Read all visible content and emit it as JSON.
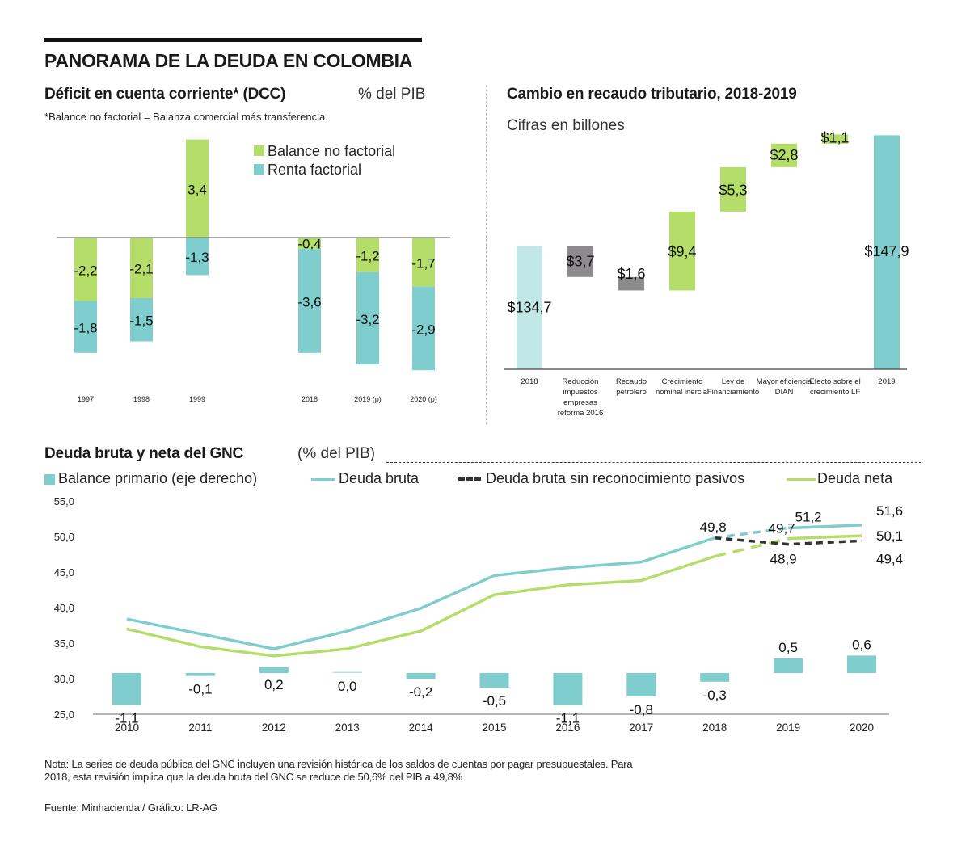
{
  "page": {
    "title": "PANORAMA DE LA DEUDA EN COLOMBIA",
    "note": "Nota: La series de deuda pública del GNC incluyen una revisión histórica de los saldos de cuentas por pagar presupuestales. Para 2018, esta revisión implica que la deuda bruta del GNC se reduce de 50,6% del PIB a 49,8%",
    "source": "Fuente: Minhacienda / Gráfico: LR-AG"
  },
  "colors": {
    "green": "#b5dd6a",
    "teal": "#7fcecd",
    "teal_light": "#c1e6e6",
    "gray": "#8e8b8e",
    "dark": "#333333"
  },
  "chart_data": [
    {
      "id": "dcc",
      "type": "bar",
      "stacked": true,
      "title": "Déficit en cuenta corriente* (DCC)",
      "unit": "% del PIB",
      "subtitle": "*Balance no factorial = Balanza comercial más transferencia",
      "categories": [
        "1997",
        "1998",
        "1999",
        "2018",
        "2019 (p)",
        "2020 (p)"
      ],
      "series": [
        {
          "name": "Balance no factorial",
          "color": "#b5dd6a",
          "values": [
            -2.2,
            -2.1,
            3.4,
            -0.4,
            -1.2,
            -1.7
          ],
          "labels": [
            "-2,2",
            "-2,1",
            "3,4",
            "-0,4",
            "-1,2",
            "-1,7"
          ]
        },
        {
          "name": "Renta factorial",
          "color": "#7fcecd",
          "values": [
            -1.8,
            -1.5,
            -1.3,
            -3.6,
            -3.2,
            -2.9
          ],
          "labels": [
            "-1,8",
            "-1,5",
            "-1,3",
            "-3,6",
            "-3,2",
            "-2,9"
          ]
        }
      ],
      "legend": "top-right",
      "grid": false
    },
    {
      "id": "recaudo",
      "type": "bar",
      "subtype": "waterfall",
      "title": "Cambio en recaudo tributario, 2018-2019",
      "subtitle": "Cifras en billones",
      "categories": [
        "2018",
        "Reducción impuestos empresas reforma 2016",
        "Recaudo petrolero",
        "Crecimiento nominal inercial",
        "Ley de Financiamiento",
        "Mayor eficiencia DIAN",
        "Efecto sobre el crecimiento LF",
        "2019"
      ],
      "category_lines": [
        [
          "2018"
        ],
        [
          "Reducción",
          "impuestos",
          "empresas",
          "reforma 2016"
        ],
        [
          "Recaudo",
          "petrolero"
        ],
        [
          "Crecimiento",
          "nominal inercial"
        ],
        [
          "Ley de",
          "Financiamiento"
        ],
        [
          "Mayor eficiencia",
          "DIAN"
        ],
        [
          "Efecto sobre el",
          "crecimiento LF"
        ],
        [
          "2019"
        ]
      ],
      "values": [
        134.7,
        -3.7,
        -1.6,
        9.4,
        5.3,
        2.8,
        1.1,
        147.9
      ],
      "kinds": [
        "total",
        "decrease",
        "decrease",
        "increase",
        "increase",
        "increase",
        "increase",
        "total"
      ],
      "labels": [
        "$134,7",
        "$3,7",
        "$1,6",
        "$9,4",
        "$5,3",
        "$2,8",
        "$1,1",
        "$147,9"
      ],
      "ylim": [
        120,
        150
      ],
      "grid": false
    },
    {
      "id": "deuda",
      "type": "line",
      "title": "Deuda bruta y neta del GNC",
      "unit": "(% del PIB)",
      "x": [
        "2010",
        "2011",
        "2012",
        "2013",
        "2014",
        "2015",
        "2016",
        "2017",
        "2018",
        "2019",
        "2020"
      ],
      "yticks": [
        "55,0",
        "50,0",
        "45,0",
        "40,0",
        "35,0",
        "30,0",
        "25,0"
      ],
      "ylim": [
        25,
        55
      ],
      "legend": "top",
      "series": [
        {
          "name": "Balance primario (eje derecho)",
          "type": "bar",
          "color": "#7fcecd",
          "values": [
            -1.1,
            -0.1,
            0.2,
            0.0,
            -0.2,
            -0.5,
            -1.1,
            -0.8,
            -0.3,
            0.5,
            0.6
          ],
          "labels": [
            "-1,1",
            "-0,1",
            "0,2",
            "0,0",
            "-0,2",
            "-0,5",
            "-1,1",
            "-0,8",
            "-0,3",
            "0,5",
            "0,6"
          ]
        },
        {
          "name": "Deuda bruta",
          "type": "line",
          "color": "#7fcecd",
          "values": [
            38.4,
            36.3,
            34.2,
            36.7,
            39.9,
            44.5,
            45.6,
            46.4,
            49.8,
            51.2,
            51.6
          ],
          "projected_from": "2018"
        },
        {
          "name": "Deuda bruta sin reconocimiento pasivos",
          "type": "line",
          "dash": true,
          "color": "#333333",
          "values": [
            null,
            null,
            null,
            null,
            null,
            null,
            null,
            null,
            49.8,
            48.9,
            49.4
          ]
        },
        {
          "name": "Deuda neta",
          "type": "line",
          "color": "#b5dd6a",
          "values": [
            37.0,
            34.5,
            33.2,
            34.2,
            36.7,
            41.8,
            43.2,
            43.8,
            47.2,
            49.7,
            50.1
          ],
          "projected_from": "2018"
        }
      ],
      "annotations": [
        "49,8",
        "51,2",
        "49,7",
        "48,9",
        "51,6",
        "50,1",
        "49,4"
      ]
    }
  ]
}
